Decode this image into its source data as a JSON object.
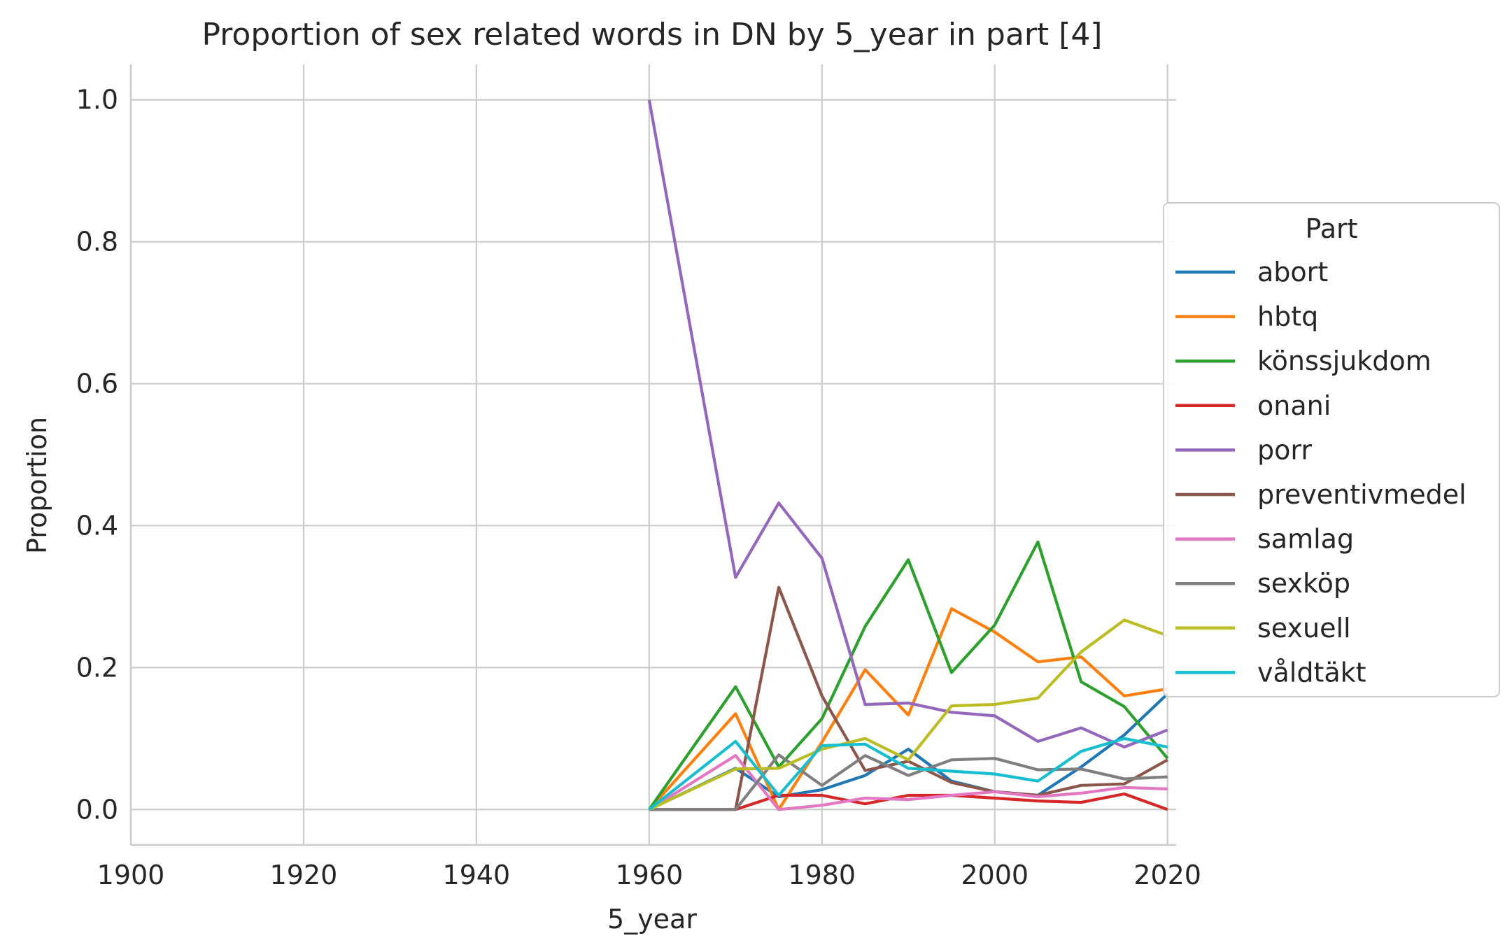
{
  "chart_data": {
    "type": "line",
    "title": "Proportion of sex related words in DN by 5_year in part [4]",
    "xlabel": "5_year",
    "ylabel": "Proportion",
    "xlim": [
      1900,
      2021
    ],
    "ylim": [
      -0.05,
      1.05
    ],
    "xticks": [
      1900,
      1920,
      1940,
      1960,
      1980,
      2000,
      2020
    ],
    "yticks": [
      0.0,
      0.2,
      0.4,
      0.6,
      0.8,
      1.0
    ],
    "ytick_labels": [
      "0.0",
      "0.2",
      "0.4",
      "0.6",
      "0.8",
      "1.0"
    ],
    "grid": true,
    "legend_title": "Part",
    "legend_position": "center-right",
    "x": [
      1960,
      1970,
      1975,
      1980,
      1985,
      1990,
      1995,
      2000,
      2005,
      2010,
      2015,
      2020
    ],
    "series": [
      {
        "name": "abort",
        "color": "#1f77b4",
        "values": [
          0.0,
          0.058,
          0.018,
          0.028,
          0.048,
          0.085,
          0.04,
          0.025,
          0.02,
          0.06,
          0.105,
          0.163
        ]
      },
      {
        "name": "hbtq",
        "color": "#ff7f0e",
        "values": [
          0.0,
          0.135,
          0.0,
          0.095,
          0.197,
          0.133,
          0.283,
          0.25,
          0.208,
          0.215,
          0.16,
          0.17
        ]
      },
      {
        "name": "könssjukdom",
        "color": "#2ca02c",
        "values": [
          0.0,
          0.173,
          0.06,
          0.128,
          0.258,
          0.352,
          0.193,
          0.26,
          0.377,
          0.18,
          0.145,
          0.072
        ]
      },
      {
        "name": "onani",
        "color": "#d62728",
        "values": [
          0.0,
          0.0,
          0.02,
          0.02,
          0.008,
          0.02,
          0.02,
          0.016,
          0.012,
          0.01,
          0.022,
          0.0
        ]
      },
      {
        "name": "porr",
        "color": "#9467bd",
        "values": [
          1.0,
          0.327,
          0.432,
          0.354,
          0.148,
          0.15,
          0.137,
          0.132,
          0.096,
          0.115,
          0.088,
          0.112
        ]
      },
      {
        "name": "preventivmedel",
        "color": "#8c564b",
        "values": [
          0.0,
          0.0,
          0.313,
          0.16,
          0.055,
          0.068,
          0.038,
          0.025,
          0.02,
          0.034,
          0.036,
          0.07
        ]
      },
      {
        "name": "samlag",
        "color": "#e377c2",
        "values": [
          0.0,
          0.076,
          0.0,
          0.006,
          0.016,
          0.014,
          0.02,
          0.025,
          0.018,
          0.023,
          0.031,
          0.029
        ]
      },
      {
        "name": "sexköp",
        "color": "#7f7f7f",
        "values": [
          0.0,
          0.0,
          0.077,
          0.034,
          0.076,
          0.048,
          0.07,
          0.072,
          0.056,
          0.057,
          0.043,
          0.046
        ]
      },
      {
        "name": "sexuell",
        "color": "#bcbd22",
        "values": [
          0.0,
          0.057,
          0.058,
          0.085,
          0.1,
          0.07,
          0.146,
          0.148,
          0.157,
          0.222,
          0.267,
          0.245
        ]
      },
      {
        "name": "våldtäkt",
        "color": "#17becf",
        "values": [
          0.0,
          0.096,
          0.02,
          0.09,
          0.092,
          0.058,
          0.054,
          0.05,
          0.04,
          0.082,
          0.1,
          0.088
        ]
      }
    ]
  }
}
